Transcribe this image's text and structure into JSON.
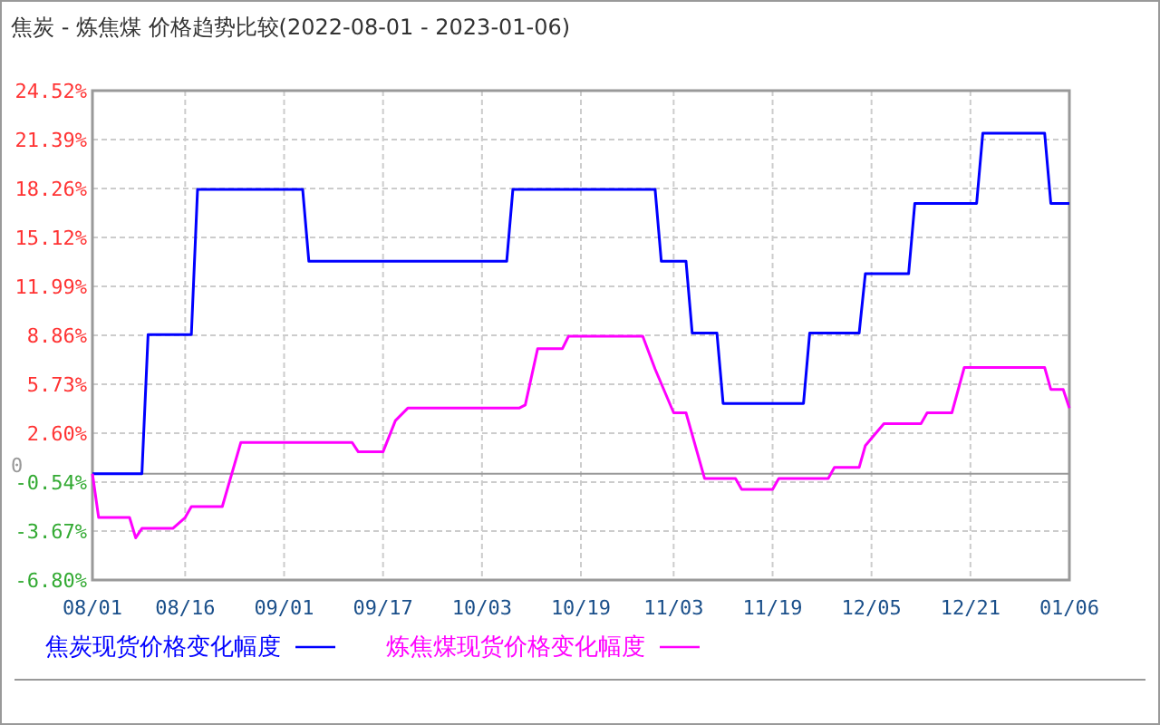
{
  "chart_data": {
    "type": "line",
    "title": "焦炭 - 炼焦煤 价格趋势比较(2022-08-01 - 2023-01-06)",
    "series": [
      {
        "name": "焦炭现货价格变化幅度",
        "color": "#0000ff",
        "x": [
          "2022-08-01",
          "2022-08-09",
          "2022-08-10",
          "2022-08-17",
          "2022-08-18",
          "2022-09-04",
          "2022-09-05",
          "2022-10-07",
          "2022-10-08",
          "2022-10-31",
          "2022-11-01",
          "2022-11-05",
          "2022-11-06",
          "2022-11-10",
          "2022-11-11",
          "2022-11-24",
          "2022-11-25",
          "2022-12-03",
          "2022-12-04",
          "2022-12-11",
          "2022-12-12",
          "2022-12-22",
          "2022-12-23",
          "2023-01-02",
          "2023-01-03",
          "2023-01-06"
        ],
        "values": [
          0,
          0,
          8.9,
          8.9,
          18.2,
          18.2,
          13.6,
          13.6,
          18.2,
          18.2,
          13.6,
          13.6,
          9.0,
          9.0,
          4.5,
          4.5,
          9.0,
          9.0,
          12.8,
          12.8,
          17.3,
          17.3,
          21.8,
          21.8,
          17.3,
          17.3
        ]
      },
      {
        "name": "炼焦煤现货价格变化幅度",
        "color": "#ff00ff",
        "x": [
          "2022-08-01",
          "2022-08-02",
          "2022-08-07",
          "2022-08-08",
          "2022-08-09",
          "2022-08-14",
          "2022-08-16",
          "2022-08-17",
          "2022-08-22",
          "2022-08-25",
          "2022-09-12",
          "2022-09-13",
          "2022-09-17",
          "2022-09-19",
          "2022-09-21",
          "2022-10-09",
          "2022-10-10",
          "2022-10-12",
          "2022-10-16",
          "2022-10-17",
          "2022-10-29",
          "2022-10-31",
          "2022-11-03",
          "2022-11-05",
          "2022-11-08",
          "2022-11-13",
          "2022-11-14",
          "2022-11-19",
          "2022-11-20",
          "2022-11-28",
          "2022-11-29",
          "2022-12-03",
          "2022-12-04",
          "2022-12-07",
          "2022-12-13",
          "2022-12-14",
          "2022-12-18",
          "2022-12-20",
          "2023-01-02",
          "2023-01-03",
          "2023-01-05",
          "2023-01-06"
        ],
        "values": [
          0,
          -2.8,
          -2.8,
          -4.1,
          -3.5,
          -3.5,
          -2.8,
          -2.1,
          -2.1,
          2.0,
          2.0,
          1.4,
          1.4,
          3.4,
          4.2,
          4.2,
          4.4,
          8.0,
          8.0,
          8.8,
          8.8,
          6.7,
          3.9,
          3.9,
          -0.3,
          -0.3,
          -1.0,
          -1.0,
          -0.3,
          -0.3,
          0.4,
          0.4,
          1.8,
          3.2,
          3.2,
          3.9,
          3.9,
          6.8,
          6.8,
          5.4,
          5.4,
          4.2
        ]
      }
    ],
    "xlim": [
      "2022-08-01",
      "2023-01-06"
    ],
    "xticks": [
      {
        "value": "2022-08-01",
        "label": "08/01"
      },
      {
        "value": "2022-08-16",
        "label": "08/16"
      },
      {
        "value": "2022-09-01",
        "label": "09/01"
      },
      {
        "value": "2022-09-17",
        "label": "09/17"
      },
      {
        "value": "2022-10-03",
        "label": "10/03"
      },
      {
        "value": "2022-10-19",
        "label": "10/19"
      },
      {
        "value": "2022-11-03",
        "label": "11/03"
      },
      {
        "value": "2022-11-19",
        "label": "11/19"
      },
      {
        "value": "2022-12-05",
        "label": "12/05"
      },
      {
        "value": "2022-12-21",
        "label": "12/21"
      },
      {
        "value": "2023-01-06",
        "label": "01/06"
      }
    ],
    "ylim": [
      -6.8,
      24.52
    ],
    "yticks": [
      {
        "value": -6.8,
        "label": "-6.80%"
      },
      {
        "value": -3.67,
        "label": "-3.67%"
      },
      {
        "value": -0.54,
        "label": "-0.54%"
      },
      {
        "value": 2.6,
        "label": "2.60%"
      },
      {
        "value": 5.73,
        "label": "5.73%"
      },
      {
        "value": 8.86,
        "label": "8.86%"
      },
      {
        "value": 11.99,
        "label": "11.99%"
      },
      {
        "value": 15.12,
        "label": "15.12%"
      },
      {
        "value": 18.26,
        "label": "18.26%"
      },
      {
        "value": 21.39,
        "label": "21.39%"
      },
      {
        "value": 24.52,
        "label": "24.52%"
      }
    ],
    "ref_lines": [
      {
        "axis": "y",
        "value": 0,
        "label": "0",
        "color": "#999999"
      }
    ],
    "grid": true,
    "legend": "bottom",
    "line_style": "solid",
    "marker": "none"
  }
}
